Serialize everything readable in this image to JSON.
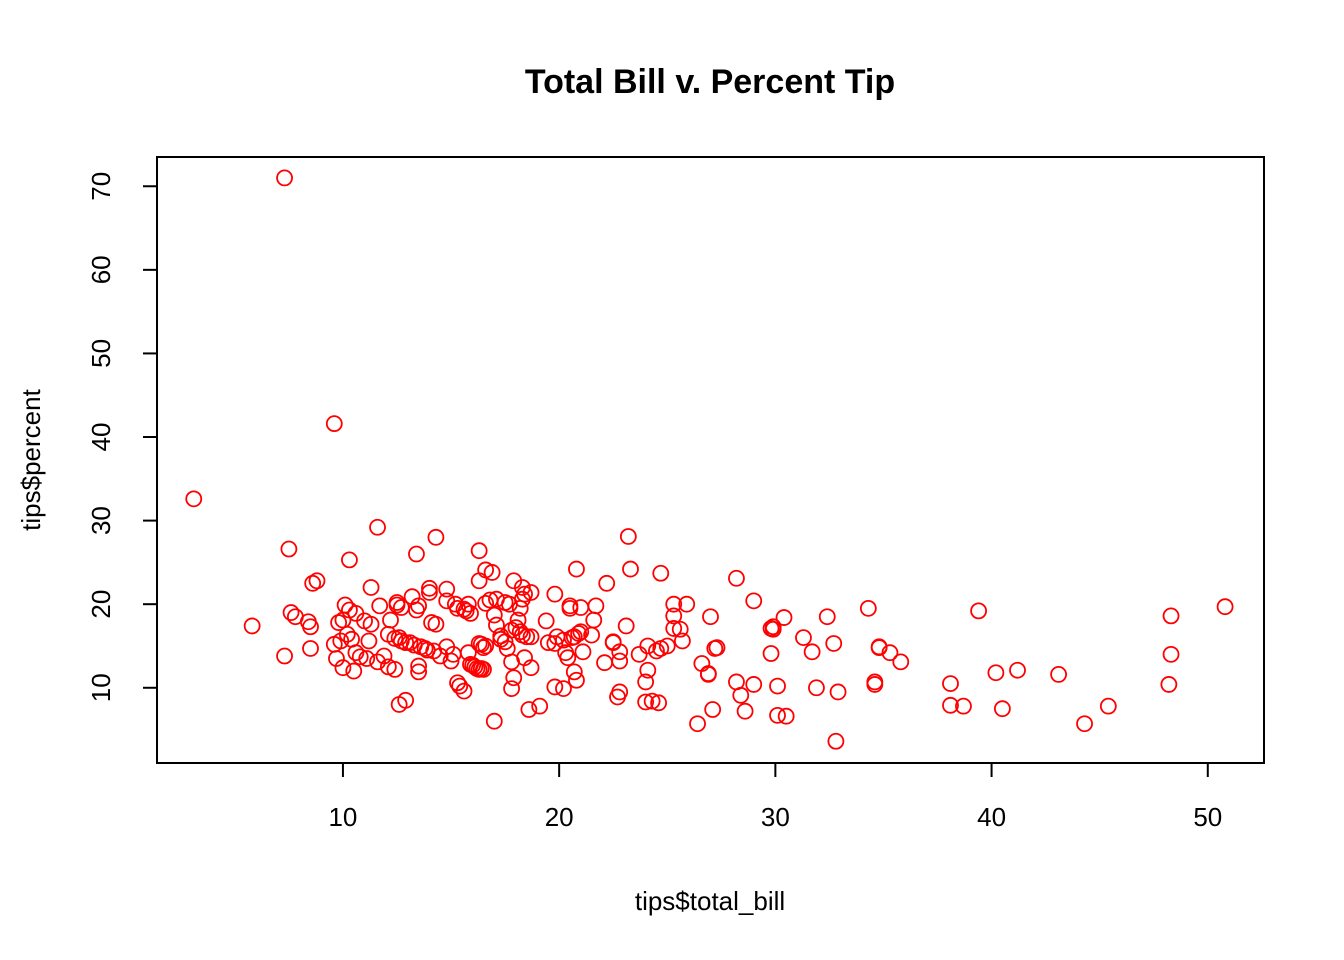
{
  "chart_data": {
    "type": "scatter",
    "title": "Total Bill v. Percent Tip",
    "xlabel": "tips$total_bill",
    "ylabel": "tips$percent",
    "xlim": [
      1.4,
      52.6
    ],
    "ylim": [
      1.0,
      73.5
    ],
    "x_ticks": [
      10,
      20,
      30,
      40,
      50
    ],
    "y_ticks": [
      10,
      20,
      30,
      40,
      50,
      60,
      70
    ],
    "grid": false,
    "point_color": "#ff0000",
    "marker": "open-circle",
    "points": [
      [
        3.1,
        32.6
      ],
      [
        5.8,
        17.4
      ],
      [
        7.3,
        71.0
      ],
      [
        7.5,
        26.6
      ],
      [
        7.6,
        19.0
      ],
      [
        7.8,
        18.5
      ],
      [
        7.3,
        13.8
      ],
      [
        8.4,
        17.9
      ],
      [
        8.5,
        17.3
      ],
      [
        8.6,
        22.5
      ],
      [
        8.8,
        22.8
      ],
      [
        8.5,
        14.7
      ],
      [
        9.6,
        41.6
      ],
      [
        9.8,
        17.8
      ],
      [
        10.1,
        19.9
      ],
      [
        10.3,
        19.3
      ],
      [
        10.6,
        18.9
      ],
      [
        10.0,
        18.1
      ],
      [
        10.3,
        25.3
      ],
      [
        9.9,
        15.6
      ],
      [
        10.2,
        16.4
      ],
      [
        10.4,
        15.8
      ],
      [
        10.6,
        14.2
      ],
      [
        10.8,
        13.7
      ],
      [
        10.0,
        12.4
      ],
      [
        10.5,
        12.0
      ],
      [
        9.6,
        15.2
      ],
      [
        9.7,
        13.5
      ],
      [
        11.0,
        18.0
      ],
      [
        11.3,
        22.0
      ],
      [
        11.6,
        29.2
      ],
      [
        11.7,
        19.8
      ],
      [
        11.2,
        15.6
      ],
      [
        11.3,
        17.6
      ],
      [
        11.1,
        13.5
      ],
      [
        11.6,
        13.1
      ],
      [
        11.9,
        13.8
      ],
      [
        12.1,
        12.5
      ],
      [
        12.4,
        12.2
      ],
      [
        12.6,
        8.0
      ],
      [
        12.9,
        8.5
      ],
      [
        12.2,
        18.1
      ],
      [
        12.5,
        20.2
      ],
      [
        12.5,
        19.9
      ],
      [
        12.7,
        19.6
      ],
      [
        12.1,
        16.4
      ],
      [
        12.4,
        15.9
      ],
      [
        12.7,
        15.6
      ],
      [
        12.6,
        16.0
      ],
      [
        12.9,
        15.4
      ],
      [
        13.1,
        15.4
      ],
      [
        13.2,
        20.9
      ],
      [
        13.4,
        19.3
      ],
      [
        13.5,
        19.8
      ],
      [
        13.4,
        26.0
      ],
      [
        13.6,
        14.9
      ],
      [
        13.3,
        15.1
      ],
      [
        13.5,
        12.6
      ],
      [
        13.5,
        11.9
      ],
      [
        13.8,
        14.7
      ],
      [
        13.9,
        14.5
      ],
      [
        14.0,
        21.9
      ],
      [
        14.0,
        21.4
      ],
      [
        14.1,
        17.8
      ],
      [
        14.3,
        17.6
      ],
      [
        14.2,
        14.4
      ],
      [
        14.5,
        13.8
      ],
      [
        14.3,
        28.0
      ],
      [
        14.8,
        21.8
      ],
      [
        14.8,
        20.4
      ],
      [
        14.8,
        14.9
      ],
      [
        15.0,
        13.2
      ],
      [
        15.1,
        14.0
      ],
      [
        15.2,
        20.0
      ],
      [
        15.3,
        19.5
      ],
      [
        15.3,
        10.6
      ],
      [
        15.4,
        10.2
      ],
      [
        15.6,
        19.4
      ],
      [
        15.7,
        19.2
      ],
      [
        15.8,
        20.0
      ],
      [
        15.6,
        9.6
      ],
      [
        15.9,
        18.9
      ],
      [
        15.8,
        14.2
      ],
      [
        15.9,
        12.8
      ],
      [
        16.0,
        12.7
      ],
      [
        16.1,
        12.5
      ],
      [
        16.2,
        12.3
      ],
      [
        16.3,
        12.2
      ],
      [
        16.4,
        12.3
      ],
      [
        16.5,
        12.2
      ],
      [
        16.3,
        15.3
      ],
      [
        16.4,
        15.2
      ],
      [
        16.5,
        14.8
      ],
      [
        16.6,
        15.0
      ],
      [
        16.3,
        26.4
      ],
      [
        16.3,
        22.8
      ],
      [
        16.6,
        24.1
      ],
      [
        16.9,
        23.8
      ],
      [
        16.6,
        20.1
      ],
      [
        16.8,
        20.5
      ],
      [
        17.1,
        20.6
      ],
      [
        17.0,
        18.7
      ],
      [
        17.1,
        17.5
      ],
      [
        17.3,
        16.2
      ],
      [
        17.3,
        15.8
      ],
      [
        17.5,
        15.5
      ],
      [
        17.6,
        14.7
      ],
      [
        17.0,
        6.0
      ],
      [
        17.5,
        20.2
      ],
      [
        17.7,
        20.0
      ],
      [
        17.8,
        16.9
      ],
      [
        17.8,
        13.1
      ],
      [
        17.9,
        11.2
      ],
      [
        17.8,
        9.9
      ],
      [
        17.9,
        22.8
      ],
      [
        18.0,
        17.2
      ],
      [
        18.1,
        18.1
      ],
      [
        18.2,
        16.7
      ],
      [
        18.2,
        19.5
      ],
      [
        18.3,
        20.6
      ],
      [
        18.3,
        22.0
      ],
      [
        18.4,
        21.2
      ],
      [
        18.3,
        16.3
      ],
      [
        18.5,
        16.1
      ],
      [
        18.7,
        16.1
      ],
      [
        18.4,
        13.6
      ],
      [
        18.7,
        12.4
      ],
      [
        18.7,
        21.4
      ],
      [
        18.6,
        7.4
      ],
      [
        19.1,
        7.8
      ],
      [
        19.4,
        18.0
      ],
      [
        19.5,
        15.4
      ],
      [
        19.8,
        15.3
      ],
      [
        19.8,
        21.2
      ],
      [
        19.9,
        16.1
      ],
      [
        19.8,
        10.1
      ],
      [
        20.2,
        15.7
      ],
      [
        20.2,
        9.9
      ],
      [
        20.3,
        14.2
      ],
      [
        20.4,
        13.6
      ],
      [
        20.5,
        19.8
      ],
      [
        20.5,
        19.5
      ],
      [
        20.6,
        16.0
      ],
      [
        20.7,
        16.1
      ],
      [
        20.8,
        24.2
      ],
      [
        20.7,
        11.9
      ],
      [
        20.8,
        10.9
      ],
      [
        20.9,
        16.5
      ],
      [
        21.0,
        16.7
      ],
      [
        21.0,
        19.6
      ],
      [
        21.1,
        14.3
      ],
      [
        21.5,
        16.3
      ],
      [
        21.6,
        18.1
      ],
      [
        21.7,
        19.8
      ],
      [
        22.1,
        13.0
      ],
      [
        22.2,
        22.5
      ],
      [
        22.5,
        15.5
      ],
      [
        22.5,
        15.4
      ],
      [
        22.7,
        8.9
      ],
      [
        22.8,
        9.5
      ],
      [
        22.8,
        14.3
      ],
      [
        22.8,
        13.2
      ],
      [
        23.1,
        17.4
      ],
      [
        23.2,
        28.1
      ],
      [
        23.3,
        24.2
      ],
      [
        23.7,
        14.0
      ],
      [
        24.0,
        10.7
      ],
      [
        24.0,
        8.3
      ],
      [
        24.1,
        12.1
      ],
      [
        24.1,
        15.0
      ],
      [
        24.3,
        8.4
      ],
      [
        24.5,
        14.4
      ],
      [
        24.6,
        8.2
      ],
      [
        24.7,
        23.7
      ],
      [
        24.7,
        14.7
      ],
      [
        25.0,
        15.0
      ],
      [
        25.3,
        17.1
      ],
      [
        25.3,
        18.6
      ],
      [
        25.3,
        20.0
      ],
      [
        25.6,
        17.0
      ],
      [
        25.7,
        15.6
      ],
      [
        25.9,
        20.0
      ],
      [
        26.4,
        5.7
      ],
      [
        26.6,
        12.9
      ],
      [
        26.9,
        11.6
      ],
      [
        26.9,
        11.7
      ],
      [
        27.0,
        18.5
      ],
      [
        27.1,
        7.4
      ],
      [
        27.2,
        14.7
      ],
      [
        27.3,
        14.8
      ],
      [
        28.2,
        23.1
      ],
      [
        28.2,
        10.7
      ],
      [
        28.4,
        9.1
      ],
      [
        28.6,
        7.2
      ],
      [
        29.0,
        10.4
      ],
      [
        29.0,
        20.4
      ],
      [
        29.8,
        17.1
      ],
      [
        29.8,
        14.1
      ],
      [
        29.9,
        17.3
      ],
      [
        29.9,
        17.0
      ],
      [
        30.1,
        10.2
      ],
      [
        30.1,
        6.7
      ],
      [
        30.4,
        18.4
      ],
      [
        30.5,
        6.6
      ],
      [
        31.3,
        16.0
      ],
      [
        31.7,
        14.3
      ],
      [
        31.9,
        10.0
      ],
      [
        32.4,
        18.5
      ],
      [
        32.7,
        15.3
      ],
      [
        32.8,
        3.6
      ],
      [
        32.9,
        9.5
      ],
      [
        34.3,
        19.5
      ],
      [
        34.6,
        10.4
      ],
      [
        34.6,
        10.7
      ],
      [
        34.8,
        14.9
      ],
      [
        34.8,
        14.8
      ],
      [
        35.3,
        14.2
      ],
      [
        35.8,
        13.1
      ],
      [
        38.1,
        10.5
      ],
      [
        38.1,
        7.9
      ],
      [
        38.7,
        7.8
      ],
      [
        39.4,
        19.2
      ],
      [
        40.2,
        11.8
      ],
      [
        40.5,
        7.5
      ],
      [
        41.2,
        12.1
      ],
      [
        43.1,
        11.6
      ],
      [
        44.3,
        5.7
      ],
      [
        45.4,
        7.8
      ],
      [
        48.2,
        10.4
      ],
      [
        48.3,
        14.0
      ],
      [
        48.3,
        18.6
      ],
      [
        50.8,
        19.7
      ]
    ]
  }
}
